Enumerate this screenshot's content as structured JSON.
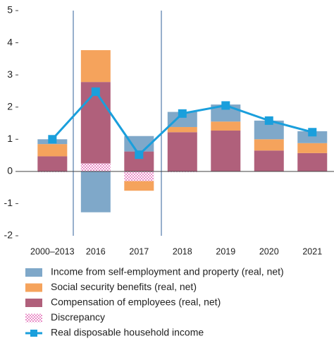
{
  "chart_data": {
    "type": "bar",
    "stacked": true,
    "categories": [
      "2000–2013",
      "2016",
      "2017",
      "2018",
      "2019",
      "2020",
      "2021"
    ],
    "series": [
      {
        "name": "Income from self-employment and property (real, net)",
        "color": "#7fa8c9",
        "values": [
          0.15,
          -1.27,
          0.48,
          0.47,
          0.53,
          0.58,
          0.37
        ]
      },
      {
        "name": "Social security benefits (real, net)",
        "color": "#f5a35c",
        "values": [
          0.38,
          0.99,
          -0.3,
          0.16,
          0.28,
          0.35,
          0.31
        ]
      },
      {
        "name": "Compensation of employees (real, net)",
        "color": "#b0607b",
        "values": [
          0.47,
          2.53,
          0.62,
          1.22,
          1.27,
          0.65,
          0.57
        ]
      },
      {
        "name": "Discrepancy",
        "color": "#e98fc8",
        "pattern": "checker",
        "values": [
          -0.02,
          0.25,
          -0.3,
          -0.02,
          0,
          0,
          0
        ]
      },
      {
        "name": "Real disposable household income",
        "color": "#1a9fdc",
        "type": "line",
        "values": [
          1.0,
          2.48,
          0.52,
          1.8,
          2.05,
          1.58,
          1.22
        ]
      }
    ],
    "ylim": [
      -2,
      5
    ],
    "yticks": [
      -2,
      -1,
      0,
      1,
      2,
      3,
      4,
      5
    ]
  }
}
